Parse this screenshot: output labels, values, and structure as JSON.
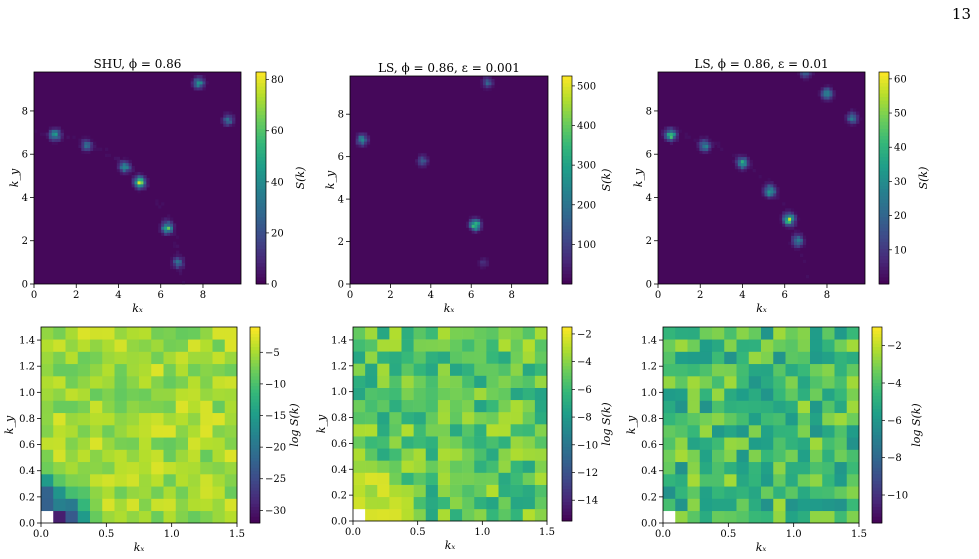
{
  "page_number": "13",
  "chart_data": [
    {
      "type": "heatmap",
      "title": "SHU, ϕ = 0.86",
      "xlabel": "kₓ",
      "ylabel": "k_y",
      "xlim": [
        0,
        9.8
      ],
      "ylim": [
        0,
        9.8
      ],
      "xticks": [
        "0",
        "2",
        "4",
        "6",
        "8"
      ],
      "yticks": [
        "0",
        "2",
        "4",
        "6",
        "8"
      ],
      "colorbar": {
        "label": "S(k)",
        "min": 0,
        "max": 83,
        "ticks": [
          "0",
          "20",
          "40",
          "60",
          "80"
        ]
      },
      "ring": {
        "radius": 7.0,
        "intensity_scale": 0.55,
        "peaks": [
          {
            "kx": 1.0,
            "ky": 6.9,
            "value": 55
          },
          {
            "kx": 2.5,
            "ky": 6.4,
            "value": 35
          },
          {
            "kx": 4.3,
            "ky": 5.4,
            "value": 45
          },
          {
            "kx": 5.0,
            "ky": 4.7,
            "value": 80
          },
          {
            "kx": 6.3,
            "ky": 2.6,
            "value": 70
          },
          {
            "kx": 6.8,
            "ky": 1.0,
            "value": 35
          },
          {
            "kx": 7.8,
            "ky": 9.3,
            "value": 50
          },
          {
            "kx": 9.2,
            "ky": 7.6,
            "value": 40
          }
        ]
      }
    },
    {
      "type": "heatmap",
      "title": "LS, ϕ = 0.86, ε = 0.001",
      "xlabel": "kₓ",
      "ylabel": "k_y",
      "xlim": [
        0,
        9.8
      ],
      "ylim": [
        0,
        9.8
      ],
      "xticks": [
        "0",
        "2",
        "4",
        "6",
        "8"
      ],
      "yticks": [
        "0",
        "2",
        "4",
        "6",
        "8"
      ],
      "colorbar": {
        "label": "S(k)",
        "min": 0,
        "max": 525,
        "ticks": [
          "100",
          "200",
          "300",
          "400",
          "500"
        ]
      },
      "ring": {
        "radius": 7.0,
        "intensity_scale": 0.06,
        "peaks": [
          {
            "kx": 0.6,
            "ky": 6.8,
            "value": 320
          },
          {
            "kx": 3.6,
            "ky": 5.8,
            "value": 180
          },
          {
            "kx": 6.2,
            "ky": 2.8,
            "value": 510
          },
          {
            "kx": 6.8,
            "ky": 9.5,
            "value": 200
          },
          {
            "kx": 6.6,
            "ky": 1.0,
            "value": 90
          }
        ]
      }
    },
    {
      "type": "heatmap",
      "title": "LS, ϕ = 0.86, ε = 0.01",
      "xlabel": "kₓ",
      "ylabel": "k_y",
      "xlim": [
        0,
        9.8
      ],
      "ylim": [
        0,
        9.8
      ],
      "xticks": [
        "0",
        "2",
        "4",
        "6",
        "8"
      ],
      "yticks": [
        "0",
        "2",
        "4",
        "6",
        "8"
      ],
      "colorbar": {
        "label": "S(k)",
        "min": 0,
        "max": 62,
        "ticks": [
          "10",
          "20",
          "30",
          "40",
          "50",
          "60"
        ]
      },
      "ring": {
        "radius": 7.0,
        "intensity_scale": 0.5,
        "peaks": [
          {
            "kx": 0.6,
            "ky": 6.9,
            "value": 55
          },
          {
            "kx": 2.2,
            "ky": 6.4,
            "value": 35
          },
          {
            "kx": 4.0,
            "ky": 5.6,
            "value": 42
          },
          {
            "kx": 5.3,
            "ky": 4.3,
            "value": 45
          },
          {
            "kx": 6.2,
            "ky": 3.0,
            "value": 60
          },
          {
            "kx": 6.6,
            "ky": 2.0,
            "value": 35
          },
          {
            "kx": 8.0,
            "ky": 8.8,
            "value": 40
          },
          {
            "kx": 9.2,
            "ky": 7.7,
            "value": 35
          },
          {
            "kx": 7.0,
            "ky": 9.8,
            "value": 30
          }
        ]
      }
    },
    {
      "type": "heatmap",
      "title": "",
      "xlabel": "kₓ",
      "ylabel": "k_y",
      "xlim": [
        0,
        1.5
      ],
      "ylim": [
        0,
        1.5
      ],
      "xticks": [
        "0.0",
        "0.5",
        "1.0",
        "1.5"
      ],
      "yticks": [
        "0.0",
        "0.2",
        "0.4",
        "0.6",
        "0.8",
        "1.0",
        "1.2",
        "1.4"
      ],
      "colorbar": {
        "label": "log S(k)",
        "min": -32,
        "max": -1,
        "ticks": [
          "−30",
          "−25",
          "−20",
          "−15",
          "−10",
          "−5"
        ]
      },
      "grid": {
        "n": 16,
        "base": -5.5,
        "noise": 3.0,
        "seed": 11,
        "low_region": {
          "radius": 0.42,
          "min": -32
        },
        "white_cells": [
          [
            0,
            0
          ]
        ]
      }
    },
    {
      "type": "heatmap",
      "title": "",
      "xlabel": "kₓ",
      "ylabel": "k_y",
      "xlim": [
        0,
        1.5
      ],
      "ylim": [
        0,
        1.5
      ],
      "xticks": [
        "0.0",
        "0.5",
        "1.0",
        "1.5"
      ],
      "yticks": [
        "0.0",
        "0.2",
        "0.4",
        "0.6",
        "0.8",
        "1.0",
        "1.2",
        "1.4"
      ],
      "colorbar": {
        "label": "log S(k)",
        "min": -15.5,
        "max": -1.5,
        "ticks": [
          "−14",
          "−12",
          "−10",
          "−8",
          "−6",
          "−4",
          "−2"
        ]
      },
      "grid": {
        "n": 16,
        "base": -5.2,
        "noise": 2.2,
        "seed": 29,
        "high_corner": {
          "radius": 0.45,
          "max": -2.2
        },
        "white_cells": [
          [
            0,
            0
          ]
        ]
      }
    },
    {
      "type": "heatmap",
      "title": "",
      "xlabel": "kₓ",
      "ylabel": "k_y",
      "xlim": [
        0,
        1.5
      ],
      "ylim": [
        0,
        1.5
      ],
      "xticks": [
        "0.0",
        "0.5",
        "1.0",
        "1.5"
      ],
      "yticks": [
        "0.0",
        "0.2",
        "0.4",
        "0.6",
        "0.8",
        "1.0",
        "1.2",
        "1.4"
      ],
      "colorbar": {
        "label": "log S(k)",
        "min": -11.5,
        "max": -1.0,
        "ticks": [
          "−10",
          "−8",
          "−6",
          "−4",
          "−2"
        ]
      },
      "grid": {
        "n": 16,
        "base": -4.3,
        "noise": 1.9,
        "seed": 47,
        "white_cells": [
          [
            0,
            0
          ]
        ]
      }
    }
  ]
}
